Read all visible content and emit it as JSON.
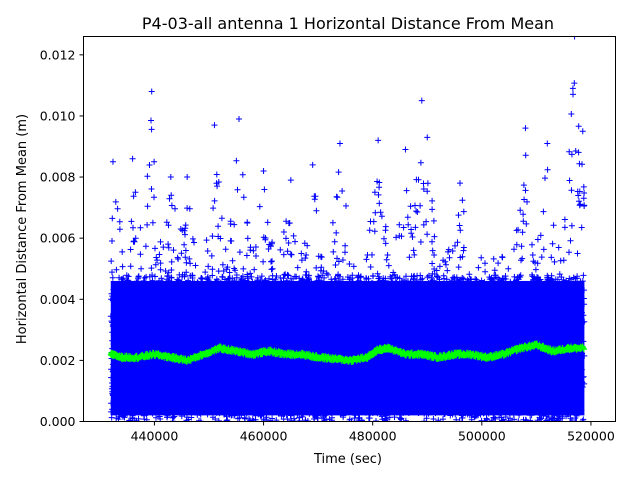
{
  "chart_data": {
    "type": "scatter",
    "title": "P4-03-all antenna 1 Horizontal Distance From Mean",
    "xlabel": "Time (sec)",
    "ylabel": "Horizontal Distance From Mean (m)",
    "xlim": [
      427000,
      524500
    ],
    "ylim": [
      0,
      0.0126
    ],
    "x_ticks": [
      440000,
      460000,
      480000,
      500000,
      520000
    ],
    "x_tick_labels": [
      "440000",
      "460000",
      "480000",
      "500000",
      "520000"
    ],
    "y_ticks": [
      0.0,
      0.002,
      0.004,
      0.006,
      0.008,
      0.01,
      0.012
    ],
    "y_tick_labels": [
      "0.000",
      "0.002",
      "0.004",
      "0.006",
      "0.008",
      "0.010",
      "0.012"
    ],
    "grid": false,
    "colors": {
      "points": "#0000ff",
      "mean": "#00ff00"
    },
    "series": [
      {
        "marker": "+",
        "color": "#0000ff",
        "x_range": [
          432000,
          518800
        ],
        "y_range": [
          0,
          0.0126
        ],
        "peaks": [
          {
            "x": 432400,
            "y": 0.0085
          },
          {
            "x": 436000,
            "y": 0.0086
          },
          {
            "x": 439500,
            "y": 0.0108
          },
          {
            "x": 443000,
            "y": 0.008
          },
          {
            "x": 446000,
            "y": 0.008
          },
          {
            "x": 451000,
            "y": 0.0097
          },
          {
            "x": 455500,
            "y": 0.0099
          },
          {
            "x": 460000,
            "y": 0.0082
          },
          {
            "x": 465000,
            "y": 0.0079
          },
          {
            "x": 469000,
            "y": 0.0084
          },
          {
            "x": 474000,
            "y": 0.0091
          },
          {
            "x": 481000,
            "y": 0.0092
          },
          {
            "x": 486000,
            "y": 0.0089
          },
          {
            "x": 489000,
            "y": 0.0105
          },
          {
            "x": 490000,
            "y": 0.0093
          },
          {
            "x": 496000,
            "y": 0.0078
          },
          {
            "x": 508000,
            "y": 0.0096
          },
          {
            "x": 512000,
            "y": 0.0091
          },
          {
            "x": 517000,
            "y": 0.0126
          },
          {
            "x": 518500,
            "y": 0.0095
          }
        ]
      },
      {
        "marker": "+",
        "color": "#00ff00",
        "x": [
          432000,
          434000,
          437000,
          440000,
          443000,
          446000,
          449000,
          452000,
          455000,
          458000,
          461000,
          464000,
          467000,
          470000,
          473000,
          476000,
          479000,
          481000,
          483000,
          486000,
          489000,
          492000,
          495000,
          498000,
          501000,
          504000,
          507000,
          510000,
          513000,
          516000,
          518800
        ],
        "y": [
          0.0022,
          0.0021,
          0.0021,
          0.0022,
          0.0021,
          0.002,
          0.0022,
          0.0024,
          0.0023,
          0.0022,
          0.0023,
          0.0022,
          0.0022,
          0.0021,
          0.00205,
          0.002,
          0.0021,
          0.00235,
          0.0024,
          0.0022,
          0.0022,
          0.0021,
          0.0022,
          0.0022,
          0.0021,
          0.0022,
          0.0024,
          0.0025,
          0.0023,
          0.0024,
          0.0024
        ]
      }
    ]
  }
}
